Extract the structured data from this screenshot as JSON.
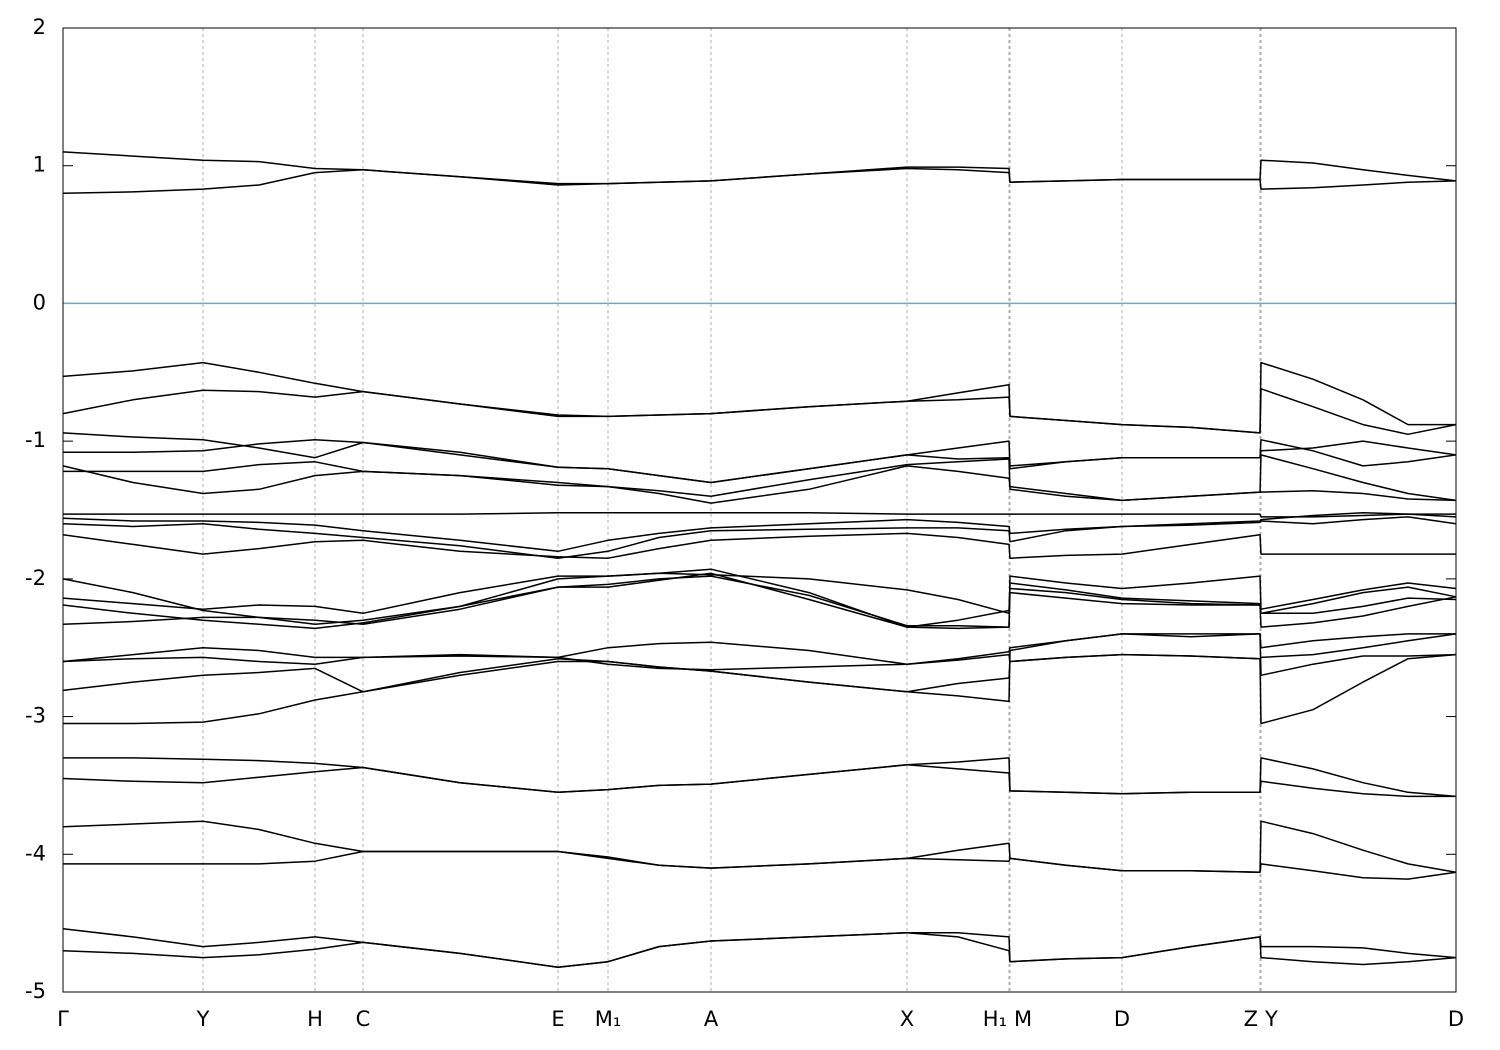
{
  "chart_data": {
    "type": "line",
    "x": [
      0,
      0.7,
      1.4,
      1.96,
      2.52,
      3.0,
      3.97,
      4.95,
      5.45,
      5.96,
      6.48,
      7.46,
      8.44,
      8.95,
      9.46,
      9.47,
      10.03,
      10.59,
      11.28,
      11.97,
      11.98,
      12.5,
      13.0,
      13.45,
      13.93
    ],
    "xlim": [
      0,
      13.93
    ],
    "xticks": [
      {
        "value": 0,
        "label": "Γ"
      },
      {
        "value": 1.4,
        "label": "Y"
      },
      {
        "value": 2.52,
        "label": "H"
      },
      {
        "value": 3.0,
        "label": "C"
      },
      {
        "value": 4.95,
        "label": "E"
      },
      {
        "value": 5.45,
        "label": "M₁"
      },
      {
        "value": 6.48,
        "label": "A"
      },
      {
        "value": 8.44,
        "label": "X"
      },
      {
        "value": 9.46,
        "label": "H₁"
      },
      {
        "value": 9.47,
        "label": "M"
      },
      {
        "value": 10.59,
        "label": "D"
      },
      {
        "value": 11.97,
        "label": "Z"
      },
      {
        "value": 11.98,
        "label": "Y"
      },
      {
        "value": 13.93,
        "label": "D"
      }
    ],
    "ylim": [
      -5,
      2
    ],
    "yticks": [
      -5,
      -4,
      -3,
      -2,
      -1,
      0,
      1,
      2
    ],
    "grid": true,
    "line_color": "#000000",
    "reference_line": {
      "value": 0,
      "color": "#5ab4c8"
    },
    "series": [
      {
        "values": [
          1.1,
          1.07,
          1.04,
          1.03,
          0.98,
          0.97,
          0.92,
          0.87,
          0.87,
          0.88,
          0.89,
          0.94,
          0.99,
          0.99,
          0.98,
          0.88,
          0.89,
          0.9,
          0.9,
          0.9,
          1.04,
          1.02,
          0.97,
          0.93,
          0.89
        ]
      },
      {
        "values": [
          0.8,
          0.81,
          0.83,
          0.86,
          0.95,
          0.97,
          0.92,
          0.86,
          0.87,
          0.88,
          0.89,
          0.94,
          0.98,
          0.97,
          0.95,
          0.88,
          0.89,
          0.9,
          0.9,
          0.9,
          0.83,
          0.84,
          0.86,
          0.88,
          0.89
        ]
      },
      {
        "values": [
          -0.53,
          -0.49,
          -0.43,
          -0.5,
          -0.58,
          -0.64,
          -0.73,
          -0.81,
          -0.82,
          -0.81,
          -0.8,
          -0.75,
          -0.71,
          -0.65,
          -0.59,
          -0.82,
          -0.85,
          -0.88,
          -0.9,
          -0.94,
          -0.43,
          -0.55,
          -0.7,
          -0.88,
          -0.88
        ]
      },
      {
        "values": [
          -0.8,
          -0.7,
          -0.63,
          -0.64,
          -0.68,
          -0.64,
          -0.73,
          -0.82,
          -0.82,
          -0.81,
          -0.8,
          -0.75,
          -0.71,
          -0.7,
          -0.68,
          -0.82,
          -0.85,
          -0.88,
          -0.9,
          -0.94,
          -0.62,
          -0.75,
          -0.88,
          -0.95,
          -0.88
        ]
      },
      {
        "values": [
          -0.94,
          -0.97,
          -0.99,
          -1.05,
          -1.12,
          -1.01,
          -1.08,
          -1.19,
          -1.2,
          -1.25,
          -1.3,
          -1.2,
          -1.1,
          -1.05,
          -1.0,
          -1.18,
          -1.15,
          -1.12,
          -1.12,
          -1.12,
          -0.99,
          -1.07,
          -1.18,
          -1.15,
          -1.1
        ]
      },
      {
        "values": [
          -1.08,
          -1.08,
          -1.07,
          -1.02,
          -0.99,
          -1.01,
          -1.1,
          -1.19,
          -1.2,
          -1.25,
          -1.3,
          -1.2,
          -1.1,
          -1.13,
          -1.12,
          -1.2,
          -1.15,
          -1.12,
          -1.12,
          -1.12,
          -1.07,
          -1.05,
          -1.0,
          -1.05,
          -1.1
        ]
      },
      {
        "values": [
          -1.18,
          -1.3,
          -1.38,
          -1.35,
          -1.25,
          -1.22,
          -1.25,
          -1.3,
          -1.33,
          -1.38,
          -1.45,
          -1.35,
          -1.18,
          -1.22,
          -1.27,
          -1.33,
          -1.38,
          -1.43,
          -1.4,
          -1.37,
          -1.37,
          -1.36,
          -1.38,
          -1.42,
          -1.43
        ]
      },
      {
        "values": [
          -1.22,
          -1.22,
          -1.22,
          -1.17,
          -1.15,
          -1.22,
          -1.25,
          -1.32,
          -1.33,
          -1.36,
          -1.4,
          -1.28,
          -1.17,
          -1.15,
          -1.13,
          -1.35,
          -1.4,
          -1.43,
          -1.4,
          -1.37,
          -1.1,
          -1.2,
          -1.3,
          -1.38,
          -1.43
        ]
      },
      {
        "values": [
          -1.53,
          -1.53,
          -1.53,
          -1.53,
          -1.53,
          -1.53,
          -1.53,
          -1.52,
          -1.52,
          -1.52,
          -1.52,
          -1.52,
          -1.53,
          -1.53,
          -1.53,
          -1.53,
          -1.53,
          -1.53,
          -1.53,
          -1.53,
          -1.55,
          -1.55,
          -1.54,
          -1.53,
          -1.53
        ]
      },
      {
        "values": [
          -1.56,
          -1.58,
          -1.58,
          -1.59,
          -1.61,
          -1.65,
          -1.72,
          -1.8,
          -1.72,
          -1.67,
          -1.63,
          -1.6,
          -1.57,
          -1.59,
          -1.62,
          -1.67,
          -1.64,
          -1.62,
          -1.6,
          -1.58,
          -1.57,
          -1.54,
          -1.52,
          -1.53,
          -1.55
        ]
      },
      {
        "values": [
          -1.6,
          -1.62,
          -1.6,
          -1.64,
          -1.67,
          -1.7,
          -1.76,
          -1.85,
          -1.8,
          -1.7,
          -1.65,
          -1.64,
          -1.63,
          -1.63,
          -1.65,
          -1.73,
          -1.65,
          -1.62,
          -1.61,
          -1.59,
          -1.58,
          -1.6,
          -1.57,
          -1.55,
          -1.6
        ]
      },
      {
        "values": [
          -1.68,
          -1.75,
          -1.82,
          -1.78,
          -1.73,
          -1.72,
          -1.8,
          -1.84,
          -1.85,
          -1.78,
          -1.72,
          -1.69,
          -1.67,
          -1.7,
          -1.75,
          -1.85,
          -1.83,
          -1.82,
          -1.75,
          -1.68,
          -1.82,
          -1.82,
          -1.82,
          -1.82,
          -1.82
        ]
      },
      {
        "values": [
          -2.0,
          -2.1,
          -2.23,
          -2.28,
          -2.33,
          -2.3,
          -2.2,
          -2.0,
          -1.98,
          -1.96,
          -1.93,
          -2.1,
          -2.35,
          -2.36,
          -2.35,
          -1.98,
          -2.03,
          -2.07,
          -2.03,
          -1.98,
          -2.22,
          -2.15,
          -2.08,
          -2.03,
          -2.07
        ]
      },
      {
        "values": [
          -2.14,
          -2.18,
          -2.22,
          -2.19,
          -2.2,
          -2.25,
          -2.1,
          -1.98,
          -1.98,
          -1.96,
          -1.97,
          -2.0,
          -2.08,
          -2.15,
          -2.25,
          -2.03,
          -2.08,
          -2.14,
          -2.16,
          -2.18,
          -2.25,
          -2.18,
          -2.1,
          -2.06,
          -2.13
        ]
      },
      {
        "values": [
          -2.19,
          -2.25,
          -2.3,
          -2.33,
          -2.36,
          -2.32,
          -2.2,
          -2.06,
          -2.06,
          -2.01,
          -1.96,
          -2.15,
          -2.35,
          -2.3,
          -2.23,
          -2.07,
          -2.1,
          -2.15,
          -2.18,
          -2.19,
          -2.25,
          -2.25,
          -2.2,
          -2.14,
          -2.15
        ]
      },
      {
        "values": [
          -2.33,
          -2.31,
          -2.28,
          -2.28,
          -2.3,
          -2.33,
          -2.22,
          -2.06,
          -2.04,
          -2.0,
          -1.98,
          -2.12,
          -2.34,
          -2.34,
          -2.35,
          -2.1,
          -2.14,
          -2.18,
          -2.19,
          -2.19,
          -2.35,
          -2.32,
          -2.27,
          -2.2,
          -2.13
        ]
      },
      {
        "values": [
          -2.6,
          -2.55,
          -2.5,
          -2.52,
          -2.57,
          -2.57,
          -2.55,
          -2.57,
          -2.5,
          -2.47,
          -2.46,
          -2.52,
          -2.62,
          -2.58,
          -2.53,
          -2.5,
          -2.45,
          -2.4,
          -2.4,
          -2.4,
          -2.5,
          -2.45,
          -2.42,
          -2.4,
          -2.4
        ]
      },
      {
        "values": [
          -2.6,
          -2.58,
          -2.57,
          -2.6,
          -2.62,
          -2.57,
          -2.56,
          -2.57,
          -2.62,
          -2.65,
          -2.66,
          -2.64,
          -2.62,
          -2.59,
          -2.55,
          -2.6,
          -2.57,
          -2.55,
          -2.56,
          -2.58,
          -2.57,
          -2.55,
          -2.5,
          -2.45,
          -2.4
        ]
      },
      {
        "values": [
          -2.81,
          -2.75,
          -2.7,
          -2.68,
          -2.65,
          -2.82,
          -2.68,
          -2.58,
          -2.6,
          -2.64,
          -2.67,
          -2.75,
          -2.82,
          -2.85,
          -2.89,
          -2.52,
          -2.45,
          -2.4,
          -2.42,
          -2.4,
          -2.7,
          -2.62,
          -2.56,
          -2.56,
          -2.55
        ]
      },
      {
        "values": [
          -3.05,
          -3.05,
          -3.04,
          -2.98,
          -2.88,
          -2.82,
          -2.7,
          -2.6,
          -2.6,
          -2.64,
          -2.67,
          -2.75,
          -2.82,
          -2.76,
          -2.72,
          -2.6,
          -2.57,
          -2.55,
          -2.56,
          -2.58,
          -3.05,
          -2.95,
          -2.75,
          -2.58,
          -2.55
        ]
      },
      {
        "values": [
          -3.3,
          -3.3,
          -3.31,
          -3.32,
          -3.34,
          -3.37,
          -3.48,
          -3.55,
          -3.53,
          -3.5,
          -3.49,
          -3.42,
          -3.35,
          -3.33,
          -3.3,
          -3.54,
          -3.55,
          -3.56,
          -3.55,
          -3.55,
          -3.3,
          -3.38,
          -3.48,
          -3.55,
          -3.58
        ]
      },
      {
        "values": [
          -3.45,
          -3.47,
          -3.48,
          -3.44,
          -3.4,
          -3.37,
          -3.48,
          -3.55,
          -3.53,
          -3.5,
          -3.49,
          -3.42,
          -3.35,
          -3.38,
          -3.41,
          -3.54,
          -3.55,
          -3.56,
          -3.55,
          -3.55,
          -3.47,
          -3.52,
          -3.56,
          -3.58,
          -3.58
        ]
      },
      {
        "values": [
          -3.8,
          -3.78,
          -3.76,
          -3.82,
          -3.92,
          -3.98,
          -3.98,
          -3.98,
          -4.02,
          -4.08,
          -4.1,
          -4.07,
          -4.03,
          -3.97,
          -3.92,
          -4.03,
          -4.08,
          -4.12,
          -4.12,
          -4.13,
          -3.76,
          -3.85,
          -3.97,
          -4.07,
          -4.13
        ]
      },
      {
        "values": [
          -4.07,
          -4.07,
          -4.07,
          -4.07,
          -4.05,
          -3.98,
          -3.98,
          -3.98,
          -4.03,
          -4.08,
          -4.1,
          -4.07,
          -4.03,
          -4.04,
          -4.05,
          -4.03,
          -4.08,
          -4.12,
          -4.12,
          -4.13,
          -4.07,
          -4.12,
          -4.17,
          -4.18,
          -4.13
        ]
      },
      {
        "values": [
          -4.54,
          -4.6,
          -4.67,
          -4.64,
          -4.6,
          -4.64,
          -4.72,
          -4.82,
          -4.78,
          -4.67,
          -4.63,
          -4.6,
          -4.57,
          -4.6,
          -4.7,
          -4.78,
          -4.76,
          -4.75,
          -4.67,
          -4.6,
          -4.67,
          -4.67,
          -4.68,
          -4.72,
          -4.75
        ]
      },
      {
        "values": [
          -4.7,
          -4.72,
          -4.75,
          -4.73,
          -4.69,
          -4.64,
          -4.72,
          -4.82,
          -4.78,
          -4.67,
          -4.63,
          -4.6,
          -4.57,
          -4.57,
          -4.6,
          -4.78,
          -4.76,
          -4.75,
          -4.67,
          -4.6,
          -4.75,
          -4.78,
          -4.8,
          -4.78,
          -4.75
        ]
      }
    ]
  }
}
